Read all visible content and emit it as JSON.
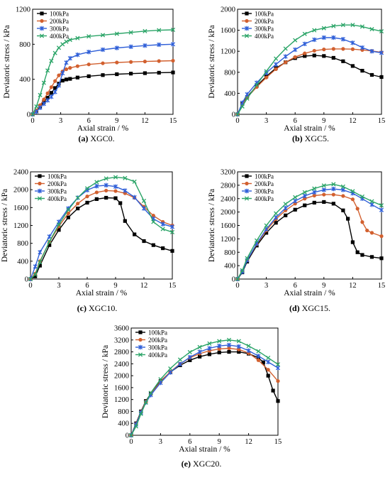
{
  "colors": {
    "100kPa": "#000000",
    "200kPa": "#d2602f",
    "300kPa": "#2f5fd8",
    "400kPa": "#2aa467",
    "axis": "#000000"
  },
  "markers": {
    "100kPa": "square",
    "200kPa": "circle",
    "300kPa": "asterisk",
    "400kPa": "cross"
  },
  "chart_data": [
    {
      "type": "line",
      "panel_label": "(a)",
      "caption": "XGC0.",
      "xlabel": "Axial strain / %",
      "ylabel": "Deviatoric stress / kPa",
      "xlim": [
        0,
        15
      ],
      "ylim": [
        0,
        1200
      ],
      "xticks": [
        0,
        3,
        6,
        9,
        12,
        15
      ],
      "yticks": [
        0,
        400,
        800,
        1200
      ],
      "legend": "top-left",
      "series": [
        {
          "name": "100kPa",
          "x": [
            0,
            0.4,
            0.8,
            1.2,
            1.6,
            2.0,
            2.4,
            2.8,
            3.2,
            3.6,
            4.0,
            4.8,
            6.0,
            7.5,
            9.0,
            10.5,
            12.0,
            13.5,
            15.0
          ],
          "y": [
            0,
            40,
            90,
            140,
            190,
            245,
            300,
            350,
            385,
            398,
            405,
            420,
            435,
            448,
            458,
            465,
            470,
            475,
            478
          ]
        },
        {
          "name": "200kPa",
          "x": [
            0,
            0.4,
            0.8,
            1.2,
            1.6,
            2.0,
            2.4,
            2.8,
            3.2,
            3.6,
            4.0,
            4.8,
            6.0,
            7.5,
            9.0,
            10.5,
            12.0,
            13.5,
            15.0
          ],
          "y": [
            0,
            45,
            105,
            170,
            240,
            310,
            380,
            445,
            490,
            515,
            530,
            550,
            570,
            583,
            592,
            598,
            603,
            608,
            612
          ]
        },
        {
          "name": "300kPa",
          "x": [
            0,
            0.4,
            0.8,
            1.2,
            1.6,
            2.0,
            2.4,
            2.8,
            3.2,
            3.6,
            4.0,
            4.8,
            6.0,
            7.5,
            9.0,
            10.5,
            12.0,
            13.5,
            15.0
          ],
          "y": [
            0,
            30,
            75,
            120,
            160,
            200,
            255,
            330,
            470,
            590,
            640,
            680,
            712,
            738,
            758,
            772,
            785,
            795,
            800
          ]
        },
        {
          "name": "400kPa",
          "x": [
            0,
            0.4,
            0.8,
            1.2,
            1.6,
            2.0,
            2.4,
            2.8,
            3.2,
            3.6,
            4.0,
            4.8,
            6.0,
            7.5,
            9.0,
            10.5,
            12.0,
            13.5,
            15.0
          ],
          "y": [
            0,
            90,
            220,
            360,
            500,
            610,
            700,
            760,
            800,
            830,
            850,
            870,
            890,
            905,
            920,
            935,
            950,
            960,
            965
          ]
        }
      ]
    },
    {
      "type": "line",
      "panel_label": "(b)",
      "caption": "XGC5.",
      "xlabel": "Axial strain / %",
      "ylabel": "Deviatoric stress / kPa",
      "xlim": [
        0,
        15
      ],
      "ylim": [
        0,
        2000
      ],
      "xticks": [
        0,
        3,
        6,
        9,
        12,
        15
      ],
      "yticks": [
        0,
        400,
        800,
        1200,
        1600,
        2000
      ],
      "legend": "top-left",
      "series": [
        {
          "name": "100kPa",
          "x": [
            0,
            0.5,
            1,
            2,
            3,
            4,
            5,
            6,
            7,
            8,
            9,
            10,
            11,
            12,
            13,
            14,
            15
          ],
          "y": [
            0,
            200,
            330,
            540,
            720,
            880,
            990,
            1070,
            1110,
            1120,
            1110,
            1075,
            1010,
            920,
            830,
            750,
            710
          ]
        },
        {
          "name": "200kPa",
          "x": [
            0,
            0.5,
            1,
            2,
            3,
            4,
            5,
            6,
            7,
            8,
            9,
            10,
            11,
            12,
            13,
            14,
            15
          ],
          "y": [
            0,
            190,
            320,
            520,
            700,
            860,
            990,
            1090,
            1160,
            1210,
            1235,
            1245,
            1245,
            1240,
            1225,
            1205,
            1180
          ]
        },
        {
          "name": "300kPa",
          "x": [
            0,
            0.5,
            1,
            2,
            3,
            4,
            5,
            6,
            7,
            8,
            9,
            10,
            11,
            12,
            13,
            14,
            15
          ],
          "y": [
            0,
            220,
            380,
            600,
            790,
            950,
            1100,
            1230,
            1340,
            1420,
            1460,
            1460,
            1430,
            1360,
            1270,
            1200,
            1170
          ]
        },
        {
          "name": "400kPa",
          "x": [
            0,
            0.5,
            1,
            2,
            3,
            4,
            5,
            6,
            7,
            8,
            9,
            10,
            11,
            12,
            13,
            14,
            15
          ],
          "y": [
            0,
            150,
            300,
            560,
            820,
            1060,
            1250,
            1410,
            1530,
            1600,
            1640,
            1680,
            1700,
            1700,
            1670,
            1620,
            1580
          ]
        }
      ]
    },
    {
      "type": "line",
      "panel_label": "(c)",
      "caption": "XGC10.",
      "xlabel": "Axial strain / %",
      "ylabel": "Deviatoric stress / kPa",
      "xlim": [
        0,
        15
      ],
      "ylim": [
        0,
        2400
      ],
      "xticks": [
        0,
        3,
        6,
        9,
        12,
        15
      ],
      "yticks": [
        0,
        400,
        800,
        1200,
        1600,
        2000,
        2400
      ],
      "legend": "top-left",
      "series": [
        {
          "name": "100kPa",
          "x": [
            0,
            0.5,
            1,
            2,
            3,
            4,
            5,
            6,
            7,
            8,
            9,
            9.5,
            10,
            11,
            12,
            13,
            14,
            15
          ],
          "y": [
            0,
            60,
            300,
            760,
            1100,
            1380,
            1580,
            1710,
            1790,
            1820,
            1810,
            1700,
            1300,
            1000,
            850,
            760,
            690,
            630
          ]
        },
        {
          "name": "200kPa",
          "x": [
            0,
            0.5,
            1,
            2,
            3,
            4,
            5,
            6,
            7,
            8,
            9,
            10,
            11,
            12,
            13,
            14,
            15
          ],
          "y": [
            0,
            120,
            400,
            830,
            1180,
            1470,
            1690,
            1850,
            1940,
            1980,
            1970,
            1920,
            1820,
            1620,
            1420,
            1280,
            1200
          ]
        },
        {
          "name": "300kPa",
          "x": [
            0,
            0.5,
            1,
            2,
            3,
            4,
            5,
            6,
            7,
            8,
            9,
            10,
            11,
            12,
            13,
            14,
            15
          ],
          "y": [
            0,
            280,
            600,
            950,
            1280,
            1580,
            1820,
            1990,
            2080,
            2100,
            2070,
            1980,
            1830,
            1580,
            1350,
            1230,
            1170
          ]
        },
        {
          "name": "400kPa",
          "x": [
            0,
            0.5,
            1,
            2,
            3,
            4,
            5,
            6,
            7,
            8,
            9,
            10,
            11,
            12,
            13,
            14,
            15
          ],
          "y": [
            0,
            100,
            380,
            840,
            1220,
            1550,
            1820,
            2030,
            2170,
            2250,
            2280,
            2260,
            2180,
            1750,
            1280,
            1120,
            1050
          ]
        }
      ]
    },
    {
      "type": "line",
      "panel_label": "(d)",
      "caption": "XGC15.",
      "xlabel": "Axial strain / %",
      "ylabel": "Deviatoric stress / kPa",
      "xlim": [
        0,
        15
      ],
      "ylim": [
        0,
        3200
      ],
      "xticks": [
        0,
        3,
        6,
        9,
        12,
        15
      ],
      "yticks": [
        0,
        400,
        800,
        1200,
        1600,
        2000,
        2400,
        2800,
        3200
      ],
      "legend": "top-left",
      "series": [
        {
          "name": "100kPa",
          "x": [
            0,
            0.5,
            1,
            2,
            3,
            4,
            5,
            6,
            7,
            8,
            9,
            10,
            11,
            11.5,
            12,
            12.5,
            13,
            14,
            15
          ],
          "y": [
            0,
            200,
            520,
            1000,
            1380,
            1680,
            1900,
            2070,
            2200,
            2280,
            2300,
            2250,
            2050,
            1800,
            1100,
            800,
            720,
            660,
            620
          ]
        },
        {
          "name": "200kPa",
          "x": [
            0,
            0.5,
            1,
            2,
            3,
            4,
            5,
            6,
            7,
            8,
            9,
            10,
            11,
            12,
            12.5,
            13,
            13.5,
            14,
            15
          ],
          "y": [
            0,
            240,
            560,
            1040,
            1450,
            1790,
            2050,
            2250,
            2400,
            2490,
            2520,
            2520,
            2480,
            2380,
            2100,
            1700,
            1450,
            1380,
            1280
          ]
        },
        {
          "name": "300kPa",
          "x": [
            0,
            0.5,
            1,
            2,
            3,
            4,
            5,
            6,
            7,
            8,
            9,
            10,
            11,
            12,
            13,
            14,
            15
          ],
          "y": [
            0,
            220,
            560,
            1060,
            1490,
            1840,
            2120,
            2330,
            2480,
            2590,
            2660,
            2690,
            2660,
            2560,
            2400,
            2220,
            2060
          ]
        },
        {
          "name": "400kPa",
          "x": [
            0,
            0.5,
            1,
            2,
            3,
            4,
            5,
            6,
            7,
            8,
            9,
            10,
            11,
            12,
            13,
            14,
            15
          ],
          "y": [
            0,
            260,
            620,
            1150,
            1600,
            1960,
            2240,
            2440,
            2590,
            2700,
            2790,
            2830,
            2760,
            2620,
            2460,
            2320,
            2200
          ]
        }
      ]
    },
    {
      "type": "line",
      "panel_label": "(e)",
      "caption": "XGC20.",
      "xlabel": "Axial strain / %",
      "ylabel": "Deviatoric stress / kPa",
      "xlim": [
        0,
        15
      ],
      "ylim": [
        0,
        3600
      ],
      "xticks": [
        0,
        3,
        6,
        9,
        12,
        15
      ],
      "yticks": [
        0,
        400,
        800,
        1200,
        1600,
        2000,
        2400,
        2800,
        3200,
        3600
      ],
      "legend": "top-left",
      "series": [
        {
          "name": "100kPa",
          "x": [
            0,
            0.5,
            1,
            1.5,
            2,
            3,
            4,
            5,
            6,
            7,
            8,
            9,
            10,
            11,
            12,
            13,
            13.5,
            14,
            14.5,
            15
          ],
          "y": [
            0,
            400,
            800,
            1150,
            1400,
            1820,
            2120,
            2350,
            2520,
            2640,
            2720,
            2780,
            2800,
            2800,
            2740,
            2600,
            2450,
            2000,
            1500,
            1150
          ]
        },
        {
          "name": "200kPa",
          "x": [
            0,
            0.5,
            1,
            1.5,
            2,
            3,
            4,
            5,
            6,
            7,
            8,
            9,
            10,
            11,
            12,
            13,
            14,
            15
          ],
          "y": [
            0,
            380,
            780,
            1130,
            1380,
            1800,
            2130,
            2400,
            2600,
            2740,
            2840,
            2900,
            2920,
            2880,
            2760,
            2520,
            2200,
            1820
          ]
        },
        {
          "name": "300kPa",
          "x": [
            0,
            0.5,
            1,
            1.5,
            2,
            3,
            4,
            5,
            6,
            7,
            8,
            9,
            10,
            11,
            12,
            13,
            14,
            15
          ],
          "y": [
            0,
            360,
            760,
            1100,
            1350,
            1760,
            2110,
            2390,
            2620,
            2800,
            2920,
            3000,
            3030,
            2980,
            2840,
            2660,
            2460,
            2260
          ]
        },
        {
          "name": "400kPa",
          "x": [
            0,
            0.5,
            1,
            1.5,
            2,
            3,
            4,
            5,
            6,
            7,
            8,
            9,
            10,
            11,
            12,
            13,
            14,
            15
          ],
          "y": [
            0,
            300,
            720,
            1100,
            1420,
            1880,
            2240,
            2540,
            2790,
            2960,
            3080,
            3160,
            3200,
            3160,
            3000,
            2820,
            2600,
            2380
          ]
        }
      ]
    }
  ]
}
